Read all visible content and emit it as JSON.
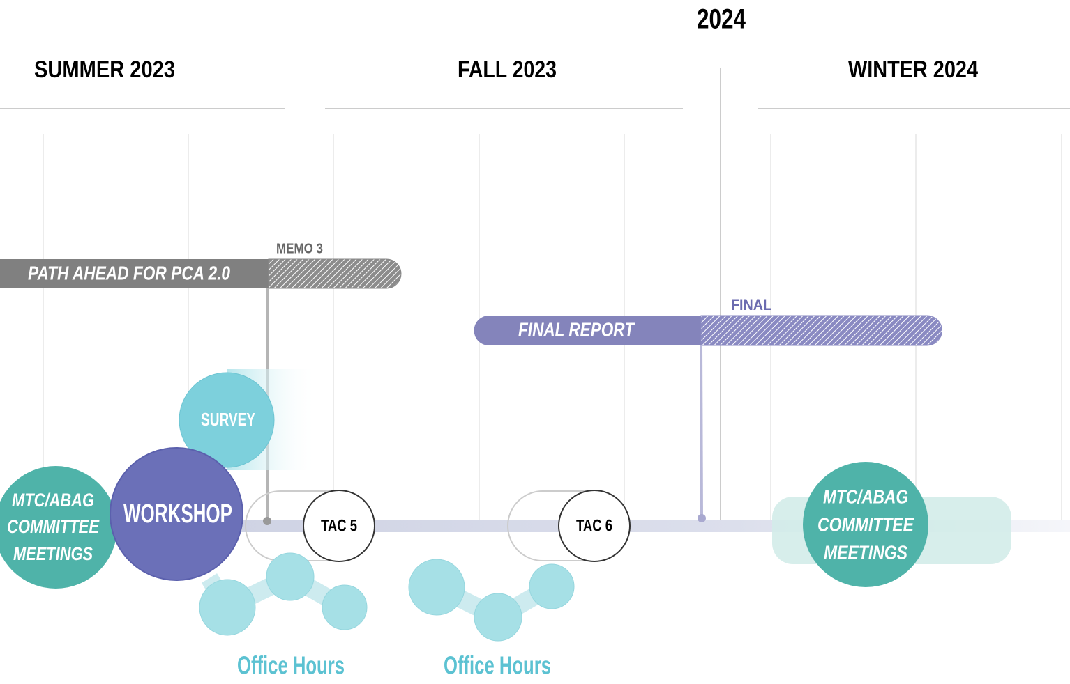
{
  "year_label": "2024",
  "seasons": [
    "SUMMER 2023",
    "FALL 2023",
    "WINTER 2024"
  ],
  "tracks": [
    {
      "label": "PATH AHEAD FOR PCA 2.0",
      "milestone": "MEMO 3"
    },
    {
      "label": "FINAL REPORT",
      "milestone": "FINAL"
    }
  ],
  "events": {
    "survey": "SURVEY",
    "workshop": "WORKSHOP",
    "committee_meetings": [
      [
        "MTC/ABAG",
        "COMMITTEE",
        "MEETINGS"
      ],
      [
        "MTC/ABAG",
        "COMMITTEE",
        "MEETINGS"
      ]
    ],
    "tac": [
      "TAC 5",
      "TAC 6"
    ],
    "office_hours": [
      "Office Hours",
      "Office Hours"
    ]
  }
}
